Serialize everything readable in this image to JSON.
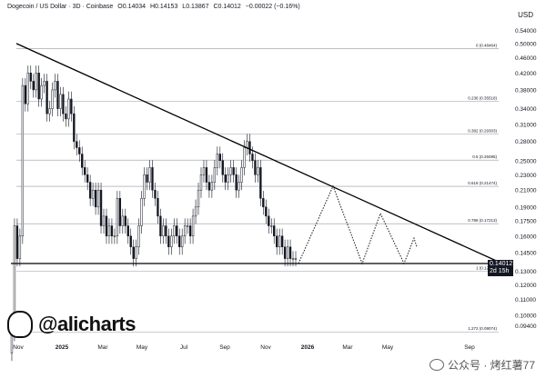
{
  "header": {
    "pair": "Dogecoin / US Dollar · 3D · Coinbase",
    "open": "O0.14034",
    "high": "H0.14153",
    "low": "L0.13867",
    "close": "C0.14012",
    "change": "−0.00022 (−0.16%)"
  },
  "axis_unit": "USD",
  "brand": {
    "handle": "@alicharts"
  },
  "watermark": {
    "text": "公众号 · 烤红薯77"
  },
  "price_tag": {
    "price": "0.14012",
    "countdown": "2d 15h"
  },
  "colors": {
    "candle_up": "#ffffff",
    "candle_down": "#131722",
    "fib": "#9598a1",
    "trend": "#000000"
  },
  "chart_data": {
    "type": "candlestick",
    "title": "Dogecoin / US Dollar · 3D · Coinbase",
    "ylabel": "USD",
    "y_range": [
      0.0875,
      0.6
    ],
    "y_scale": "log",
    "x_tick_labels": [
      "Nov",
      "2025",
      "Mar",
      "May",
      "Jul",
      "Sep",
      "Nov",
      "2026",
      "Mar",
      "May",
      "Sep"
    ],
    "y_tick_labels": [
      "0.54000",
      "0.50000",
      "0.46000",
      "0.42000",
      "0.38000",
      "0.34000",
      "0.31000",
      "0.28000",
      "0.25000",
      "0.23000",
      "0.21000",
      "0.19000",
      "0.17500",
      "0.16000",
      "0.14500",
      "0.13000",
      "0.12000",
      "0.11000",
      "0.10000",
      "0.09400"
    ],
    "fib_levels": [
      {
        "label": "0 (0.48464)",
        "value": 0.48464
      },
      {
        "label": "0.236 (0.35518)",
        "value": 0.35518
      },
      {
        "label": "0.382 (0.29303)",
        "value": 0.29303
      },
      {
        "label": "0.5 (0.25085)",
        "value": 0.25085
      },
      {
        "label": "0.618 (0.21474)",
        "value": 0.21474
      },
      {
        "label": "0.786 (0.17213)",
        "value": 0.17213
      },
      {
        "label": "1 (0.12984)",
        "value": 0.12984
      },
      {
        "label": "1.272 (0.09074)",
        "value": 0.09074
      }
    ],
    "trendlines": [
      {
        "name": "descending-resistance",
        "from": {
          "x": "Nov 2024",
          "y": 0.5
        },
        "to": {
          "x": "Sep 2026",
          "y": 0.136
        }
      },
      {
        "name": "horizontal-support",
        "from": {
          "x": "Nov 2024",
          "y": 0.136
        },
        "to": {
          "x": "Sep 2026",
          "y": 0.136
        }
      }
    ],
    "projection": {
      "style": "dotted",
      "values": [
        0.136,
        0.215,
        0.136,
        0.183,
        0.136,
        0.158,
        0.15
      ]
    },
    "last_price": 0.14012,
    "closes": [
      0.08,
      0.09,
      0.17,
      0.14,
      0.16,
      0.39,
      0.35,
      0.42,
      0.4,
      0.38,
      0.42,
      0.36,
      0.39,
      0.4,
      0.33,
      0.34,
      0.38,
      0.4,
      0.34,
      0.37,
      0.33,
      0.32,
      0.36,
      0.33,
      0.28,
      0.27,
      0.26,
      0.24,
      0.23,
      0.22,
      0.2,
      0.21,
      0.19,
      0.21,
      0.17,
      0.18,
      0.16,
      0.17,
      0.16,
      0.16,
      0.2,
      0.17,
      0.18,
      0.17,
      0.16,
      0.15,
      0.14,
      0.15,
      0.17,
      0.2,
      0.23,
      0.22,
      0.24,
      0.21,
      0.2,
      0.18,
      0.16,
      0.17,
      0.16,
      0.15,
      0.16,
      0.17,
      0.16,
      0.15,
      0.16,
      0.17,
      0.17,
      0.16,
      0.18,
      0.19,
      0.21,
      0.23,
      0.24,
      0.22,
      0.21,
      0.22,
      0.24,
      0.26,
      0.25,
      0.23,
      0.22,
      0.23,
      0.24,
      0.23,
      0.21,
      0.22,
      0.24,
      0.27,
      0.28,
      0.26,
      0.25,
      0.23,
      0.24,
      0.2,
      0.19,
      0.18,
      0.17,
      0.17,
      0.16,
      0.15,
      0.16,
      0.15,
      0.14,
      0.15,
      0.14,
      0.14,
      0.14
    ]
  }
}
